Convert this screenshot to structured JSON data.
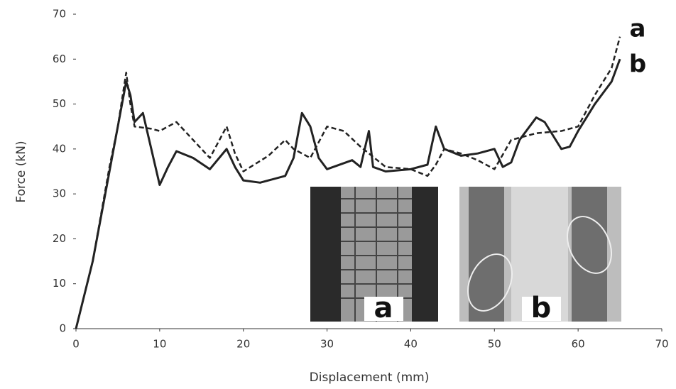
{
  "chart_data": {
    "type": "line",
    "xlabel": "Displacement (mm)",
    "ylabel": "Force (kN)",
    "xlim": [
      0,
      70
    ],
    "xticks": [
      0,
      10,
      20,
      30,
      40,
      50,
      60,
      70
    ],
    "ylim": [
      0,
      70
    ],
    "yticks": [
      0,
      10,
      20,
      30,
      40,
      50,
      60,
      70
    ],
    "series": [
      {
        "name": "a",
        "color": "#222222",
        "dash": true,
        "x": [
          0,
          2,
          4,
          5,
          6,
          6.5,
          7,
          9,
          10,
          12,
          14,
          16,
          18,
          19,
          20,
          23,
          25,
          26,
          28,
          30,
          32,
          34,
          35,
          37,
          40,
          42,
          43,
          44,
          46,
          48,
          50,
          52,
          55,
          58,
          60,
          62,
          64,
          65
        ],
        "values": [
          0,
          15,
          36,
          45,
          57,
          50,
          45,
          44.5,
          44,
          46,
          42,
          38,
          45,
          39,
          35,
          38.5,
          42,
          40,
          38,
          45,
          44,
          40.5,
          39,
          36,
          35.5,
          34,
          36.5,
          40,
          39,
          37.5,
          35.5,
          42,
          43.5,
          44,
          45,
          52,
          58,
          65
        ]
      },
      {
        "name": "b",
        "color": "#222222",
        "dash": false,
        "x": [
          0,
          2,
          4,
          5,
          6,
          6.5,
          7,
          8,
          9,
          10,
          11,
          12,
          14,
          16,
          18,
          19,
          20,
          22,
          25,
          26,
          27,
          28,
          29,
          30,
          33,
          34,
          35,
          35.5,
          37,
          40,
          42,
          43,
          44,
          46,
          48,
          50,
          51,
          52,
          53,
          55,
          56,
          58,
          59,
          60,
          62,
          64,
          65
        ],
        "values": [
          0,
          15,
          35,
          45,
          55,
          52,
          46,
          48,
          40,
          32,
          36,
          39.5,
          38,
          35.5,
          40,
          36,
          33,
          32.5,
          34,
          38,
          48,
          45,
          38,
          35.5,
          37.5,
          36,
          44,
          36,
          35,
          35.5,
          36.5,
          45,
          40,
          38.5,
          39,
          40,
          36,
          37,
          42,
          47,
          46,
          40,
          40.5,
          44,
          50,
          55,
          60
        ]
      }
    ],
    "insets": [
      {
        "label": "a"
      },
      {
        "label": "b"
      }
    ]
  }
}
